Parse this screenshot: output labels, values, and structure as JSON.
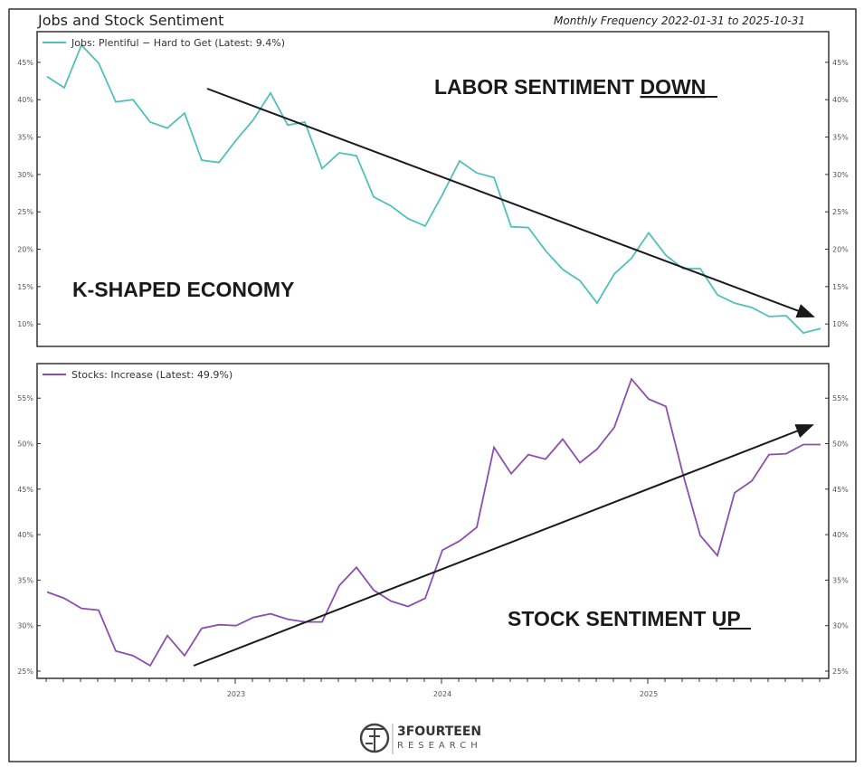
{
  "title": "Jobs and Stock Sentiment",
  "subtitle": "Monthly Frequency 2022-01-31 to 2025-10-31",
  "logo": {
    "name": "3FOURTEEN",
    "sub": "RESEARCH"
  },
  "colors": {
    "jobs": "#4fc1bd",
    "stocks": "#8a4fb0",
    "arrow": "#1a1a1a"
  },
  "x_tick_labels": [
    "2023",
    "2024",
    "2025"
  ],
  "annotations": {
    "labor_prefix": "LABOR SENTIMENT ",
    "labor_emph": "DOWN",
    "k_shaped": "K-SHAPED ECONOMY",
    "stock_prefix": "STOCK SENTIMENT ",
    "stock_emph": "UP"
  },
  "chart_data": [
    {
      "type": "line",
      "title": "Jobs: Plentiful – Hard to Get",
      "legend": "Jobs: Plentiful − Hard to Get (Latest: 9.4%)",
      "legend_position": "top-left",
      "x_start": "2022-01-31",
      "x_end": "2025-10-31",
      "frequency": "monthly",
      "ylim": [
        7.0,
        49.1
      ],
      "yticks": [
        10,
        15,
        20,
        25,
        30,
        35,
        40,
        45
      ],
      "ytick_labels": [
        "10%",
        "15%",
        "20%",
        "25%",
        "30%",
        "35%",
        "40%",
        "45%"
      ],
      "values": [
        43.1,
        41.6,
        47.3,
        44.9,
        39.7,
        40.0,
        37.0,
        36.2,
        38.2,
        31.9,
        31.6,
        34.6,
        37.3,
        40.9,
        36.6,
        37.0,
        30.8,
        32.9,
        32.5,
        27.0,
        25.8,
        24.1,
        23.1,
        27.3,
        31.8,
        30.2,
        29.6,
        23.0,
        22.9,
        19.8,
        17.3,
        15.8,
        12.8,
        16.7,
        18.8,
        22.2,
        19.2,
        17.4,
        17.4,
        13.9,
        12.8,
        12.2,
        11.0,
        11.1,
        8.8,
        9.4
      ],
      "trend_arrow": {
        "from": [
          "2022-11",
          41.3
        ],
        "to": [
          "2025-10",
          10.8
        ],
        "direction": "down"
      }
    },
    {
      "type": "line",
      "title": "Stocks: Increase",
      "legend": "Stocks: Increase (Latest: 49.9%)",
      "legend_position": "top-left",
      "x_start": "2022-01-31",
      "x_end": "2025-10-31",
      "frequency": "monthly",
      "ylim": [
        24.2,
        58.8
      ],
      "yticks": [
        25,
        30,
        35,
        40,
        45,
        50,
        55
      ],
      "ytick_labels": [
        "25%",
        "30%",
        "35%",
        "40%",
        "45%",
        "50%",
        "55%"
      ],
      "values": [
        33.7,
        33.0,
        31.9,
        31.7,
        27.2,
        26.7,
        25.6,
        28.9,
        26.7,
        29.7,
        30.1,
        30.0,
        30.9,
        31.3,
        30.7,
        30.4,
        30.4,
        34.4,
        36.4,
        33.9,
        32.7,
        32.1,
        33.0,
        38.3,
        39.3,
        40.8,
        49.6,
        46.7,
        48.8,
        48.3,
        50.5,
        47.9,
        49.4,
        51.8,
        57.1,
        54.9,
        54.1,
        46.6,
        39.9,
        37.7,
        44.6,
        45.9,
        48.8,
        48.9,
        49.9,
        49.9
      ],
      "trend_arrow": {
        "from": [
          "2022-10",
          25.6
        ],
        "to": [
          "2025-10",
          52.2
        ],
        "direction": "up"
      }
    }
  ]
}
